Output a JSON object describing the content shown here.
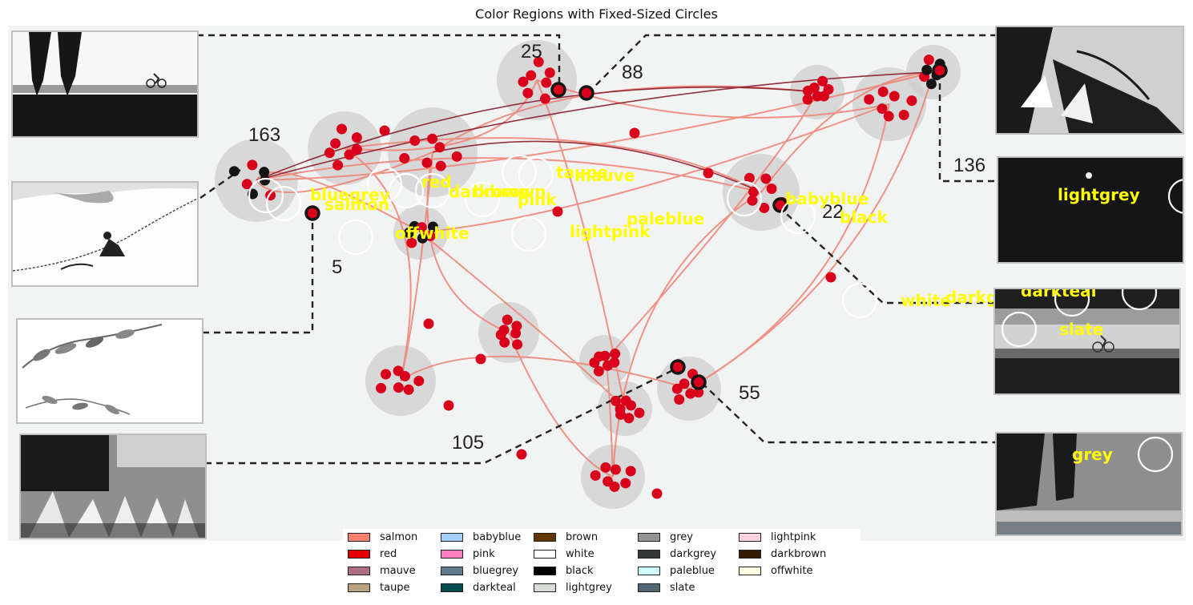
{
  "title": "Color Regions with Fixed-Sized Circles",
  "number_labels": [
    "163",
    "25",
    "88",
    "136",
    "5",
    "22",
    "105",
    "55"
  ],
  "region_labels": [
    "bluegrey",
    "salmon",
    "red",
    "darkbrown",
    "brown",
    "pink",
    "taupe",
    "mauve",
    "offwhite",
    "lightpink",
    "paleblue",
    "babyblue",
    "black",
    "white",
    "darkgrey"
  ],
  "thumb_labels": {
    "lightgrey": "lightgrey",
    "darkteal": "darkteal",
    "slate": "slate",
    "grey": "grey"
  },
  "legend": [
    {
      "label": "salmon",
      "color": "#fa8072"
    },
    {
      "label": "red",
      "color": "#e50000"
    },
    {
      "label": "mauve",
      "color": "#ae7181"
    },
    {
      "label": "taupe",
      "color": "#b9a281"
    },
    {
      "label": "babyblue",
      "color": "#a2cffe"
    },
    {
      "label": "pink",
      "color": "#ff81c0"
    },
    {
      "label": "bluegrey",
      "color": "#607c8e"
    },
    {
      "label": "darkteal",
      "color": "#014d4e"
    },
    {
      "label": "brown",
      "color": "#653700"
    },
    {
      "label": "white",
      "color": "#ffffff"
    },
    {
      "label": "black",
      "color": "#000000"
    },
    {
      "label": "lightgrey",
      "color": "#d8dcd6"
    },
    {
      "label": "grey",
      "color": "#929591"
    },
    {
      "label": "darkgrey",
      "color": "#363737"
    },
    {
      "label": "paleblue",
      "color": "#d0fefe"
    },
    {
      "label": "slate",
      "color": "#516572"
    },
    {
      "label": "lightpink",
      "color": "#ffd1df"
    },
    {
      "label": "darkbrown",
      "color": "#341c02"
    },
    {
      "label": "offwhite",
      "color": "#ffffe4"
    }
  ],
  "colors": {
    "background": "#f2f4f4",
    "marker": "#d9001b",
    "trail": "#f08070",
    "halo": "#cfcfcf",
    "label": "#ffff00"
  }
}
